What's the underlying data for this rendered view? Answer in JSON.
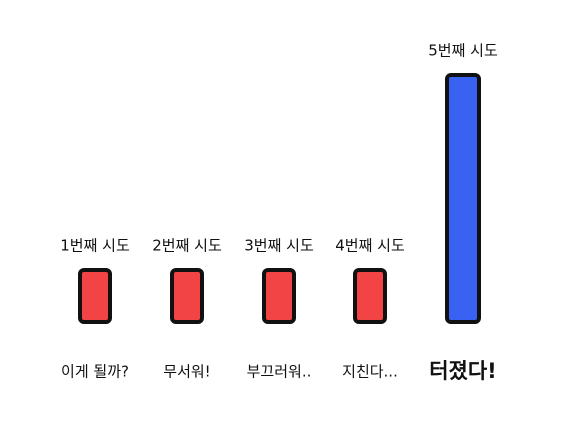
{
  "chart_data": {
    "type": "bar",
    "categories": [
      "1번째 시도",
      "2번째 시도",
      "3번째 시도",
      "4번째 시도",
      "5번째 시도"
    ],
    "captions": [
      "이게 될까?",
      "무서워!",
      "부끄러워..",
      "지친다...",
      "터졌다!"
    ],
    "values": [
      1,
      1,
      1,
      1,
      4.75
    ],
    "colors": [
      "#f24444",
      "#f24444",
      "#f24444",
      "#f24444",
      "#3a62f2"
    ],
    "emphasis": [
      false,
      false,
      false,
      false,
      true
    ],
    "ylim": [
      0,
      5
    ]
  }
}
